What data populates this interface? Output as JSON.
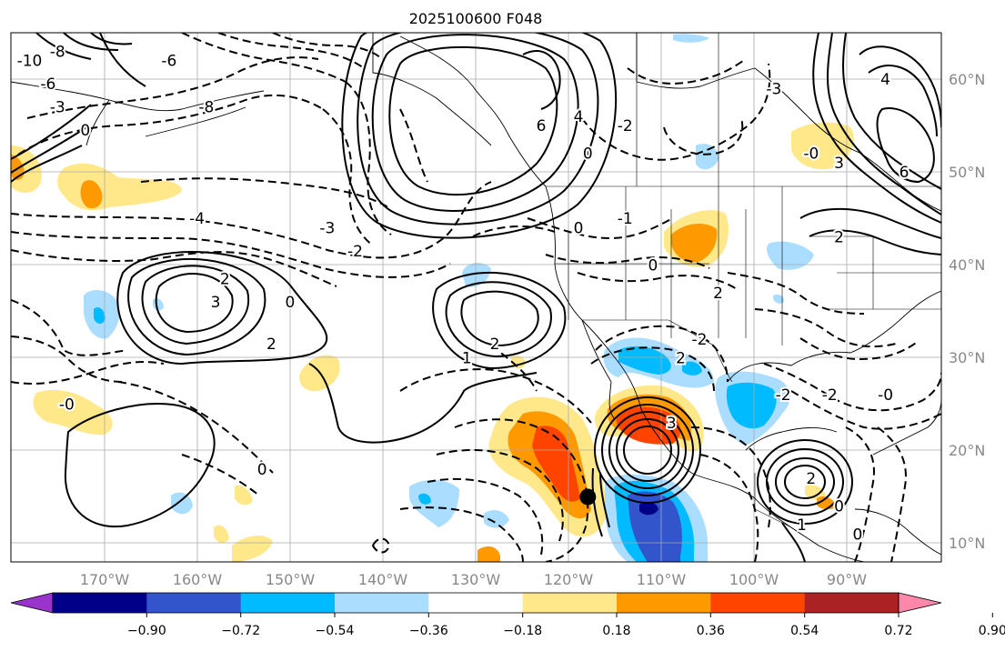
{
  "title": "2025100600 F048",
  "map": {
    "lon_labels": [
      "170°W",
      "160°W",
      "150°W",
      "140°W",
      "130°W",
      "120°W",
      "110°W",
      "100°W",
      "90°W"
    ],
    "lat_labels": [
      "60°N",
      "50°N",
      "40°N",
      "30°N",
      "20°N",
      "10°N"
    ],
    "lon_range": [
      -180,
      -80
    ],
    "lat_range": [
      8,
      65
    ],
    "storm_marker_lonlat": [
      -118,
      15
    ]
  },
  "contour_labels": [
    {
      "text": "-10",
      "lon": -178,
      "lat": 62
    },
    {
      "text": "-8",
      "lon": -175,
      "lat": 63
    },
    {
      "text": "-6",
      "lon": -176,
      "lat": 59.5
    },
    {
      "text": "-3",
      "lon": -175,
      "lat": 57
    },
    {
      "text": "0",
      "lon": -172,
      "lat": 54.5
    },
    {
      "text": "-6",
      "lon": -163,
      "lat": 62
    },
    {
      "text": "-8",
      "lon": -159,
      "lat": 57
    },
    {
      "text": "6",
      "lon": -123,
      "lat": 55
    },
    {
      "text": "4",
      "lon": -119,
      "lat": 56
    },
    {
      "text": "-2",
      "lon": -114,
      "lat": 55
    },
    {
      "text": "0",
      "lon": -118,
      "lat": 52
    },
    {
      "text": "-3",
      "lon": -98,
      "lat": 59
    },
    {
      "text": "4",
      "lon": -86,
      "lat": 60
    },
    {
      "text": "-0",
      "lon": -94,
      "lat": 52
    },
    {
      "text": "3",
      "lon": -91,
      "lat": 51
    },
    {
      "text": "6",
      "lon": -84,
      "lat": 50
    },
    {
      "text": "2",
      "lon": -91,
      "lat": 43
    },
    {
      "text": "-4",
      "lon": -160,
      "lat": 45
    },
    {
      "text": "-3",
      "lon": -146,
      "lat": 44
    },
    {
      "text": "-2",
      "lon": -143,
      "lat": 41.5
    },
    {
      "text": "0",
      "lon": -150,
      "lat": 36
    },
    {
      "text": "2",
      "lon": -157,
      "lat": 38.5
    },
    {
      "text": "3",
      "lon": -158,
      "lat": 36
    },
    {
      "text": "2",
      "lon": -152,
      "lat": 31.5
    },
    {
      "text": "0",
      "lon": -119,
      "lat": 44
    },
    {
      "text": "-1",
      "lon": -114,
      "lat": 45
    },
    {
      "text": "0",
      "lon": -111,
      "lat": 40
    },
    {
      "text": "2",
      "lon": -128,
      "lat": 31.5
    },
    {
      "text": "1",
      "lon": -131,
      "lat": 30
    },
    {
      "text": "-0",
      "lon": -174,
      "lat": 25
    },
    {
      "text": "0",
      "lon": -153,
      "lat": 18
    },
    {
      "text": "2",
      "lon": -104,
      "lat": 37
    },
    {
      "text": "2",
      "lon": -108,
      "lat": 30
    },
    {
      "text": "-2",
      "lon": -106,
      "lat": 32
    },
    {
      "text": "3",
      "lon": -109,
      "lat": 23
    },
    {
      "text": "-2",
      "lon": -97,
      "lat": 26
    },
    {
      "text": "-2",
      "lon": -92,
      "lat": 26
    },
    {
      "text": "-0",
      "lon": -86,
      "lat": 26
    },
    {
      "text": "2",
      "lon": -94,
      "lat": 17
    },
    {
      "text": "1",
      "lon": -95,
      "lat": 12
    },
    {
      "text": "0",
      "lon": -91,
      "lat": 14
    },
    {
      "text": "0",
      "lon": -89,
      "lat": 11
    }
  ],
  "colorbar": {
    "ticks": [
      "−0.90",
      "−0.72",
      "−0.54",
      "−0.36",
      "−0.18",
      "0.18",
      "0.36",
      "0.54",
      "0.72",
      "0.90"
    ],
    "colors": [
      "#9933cc",
      "#000088",
      "#3355cc",
      "#00bbff",
      "#aaddff",
      "#ffffff",
      "#ffe88a",
      "#ff9900",
      "#ff4400",
      "#aa2222",
      "#ff88aa"
    ]
  }
}
